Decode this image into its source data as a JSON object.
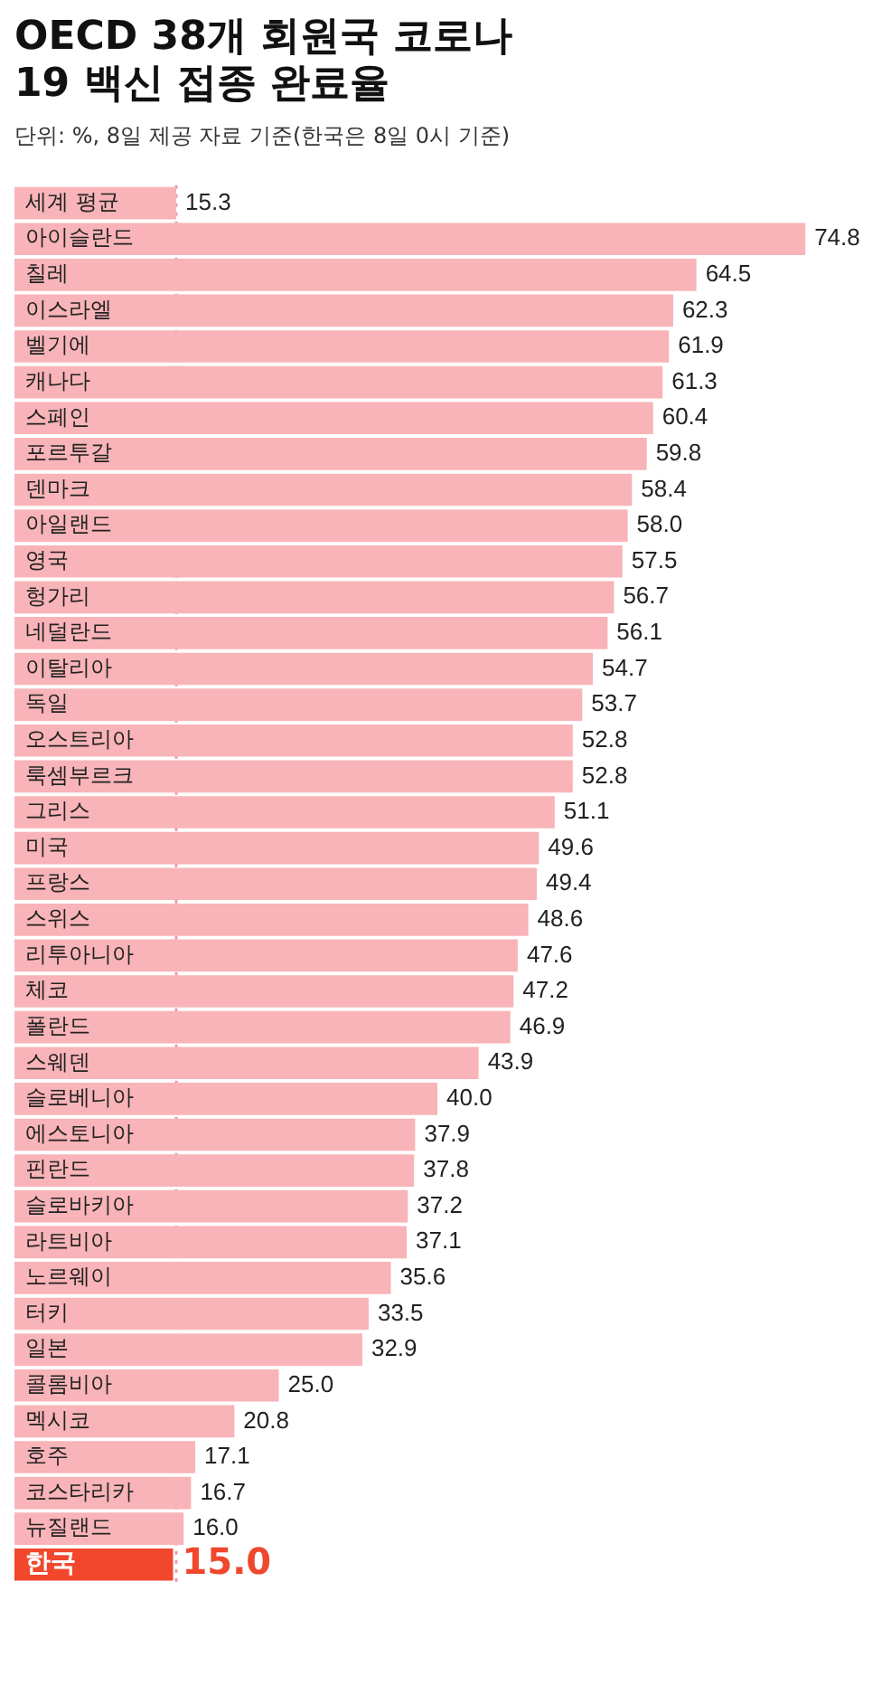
{
  "chart_data": {
    "type": "bar",
    "orientation": "horizontal",
    "title": "OECD 38개 회원국 코로나19 백신 접종 완료율",
    "subtitle": "단위: %, 8일 제공 자료 기준(한국은 8일 0시 기준)",
    "categories": [
      "세계 평균",
      "아이슬란드",
      "칠레",
      "이스라엘",
      "벨기에",
      "캐나다",
      "스페인",
      "포르투갈",
      "덴마크",
      "아일랜드",
      "영국",
      "헝가리",
      "네덜란드",
      "이탈리아",
      "독일",
      "오스트리아",
      "룩셈부르크",
      "그리스",
      "미국",
      "프랑스",
      "스위스",
      "리투아니아",
      "체코",
      "폴란드",
      "스웨덴",
      "슬로베니아",
      "에스토니아",
      "핀란드",
      "슬로바키아",
      "라트비아",
      "노르웨이",
      "터키",
      "일본",
      "콜롬비아",
      "멕시코",
      "호주",
      "코스타리카",
      "뉴질랜드",
      "한국"
    ],
    "values": [
      15.3,
      74.8,
      64.5,
      62.3,
      61.9,
      61.3,
      60.4,
      59.8,
      58.4,
      58.0,
      57.5,
      56.7,
      56.1,
      54.7,
      53.7,
      52.8,
      52.8,
      51.1,
      49.6,
      49.4,
      48.6,
      47.6,
      47.2,
      46.9,
      43.9,
      40.0,
      37.9,
      37.8,
      37.2,
      37.1,
      35.6,
      33.5,
      32.9,
      25.0,
      20.8,
      17.1,
      16.7,
      16.0,
      15.0
    ],
    "value_labels": [
      "15.3",
      "74.8",
      "64.5",
      "62.3",
      "61.9",
      "61.3",
      "60.4",
      "59.8",
      "58.4",
      "58.0",
      "57.5",
      "56.7",
      "56.1",
      "54.7",
      "53.7",
      "52.8",
      "52.8",
      "51.1",
      "49.6",
      "49.4",
      "48.6",
      "47.6",
      "47.2",
      "46.9",
      "43.9",
      "40.0",
      "37.9",
      "37.8",
      "37.2",
      "37.1",
      "35.6",
      "33.5",
      "32.9",
      "25.0",
      "20.8",
      "17.1",
      "16.7",
      "16.0",
      "15.0"
    ],
    "colors": [
      "#f8b4b8",
      "#f8b4b8",
      "#f8b4b8",
      "#f8b4b8",
      "#f8b4b8",
      "#f8b4b8",
      "#f8b4b8",
      "#f8b4b8",
      "#f8b4b8",
      "#f8b4b8",
      "#f8b4b8",
      "#f8b4b8",
      "#f8b4b8",
      "#f8b4b8",
      "#f8b4b8",
      "#f8b4b8",
      "#f8b4b8",
      "#f8b4b8",
      "#f8b4b8",
      "#f8b4b8",
      "#f8b4b8",
      "#f8b4b8",
      "#f8b4b8",
      "#f8b4b8",
      "#f8b4b8",
      "#f8b4b8",
      "#f8b4b8",
      "#f8b4b8",
      "#f8b4b8",
      "#f8b4b8",
      "#f8b4b8",
      "#f8b4b8",
      "#f8b4b8",
      "#f8b4b8",
      "#f8b4b8",
      "#f8b4b8",
      "#f8b4b8",
      "#f8b4b8",
      "#f0472d"
    ],
    "ref_lines": [
      {
        "axis": "x",
        "value": 15.3,
        "color": "#f29aa0",
        "line_style": "dotted"
      }
    ],
    "legend": false,
    "grid": false
  }
}
